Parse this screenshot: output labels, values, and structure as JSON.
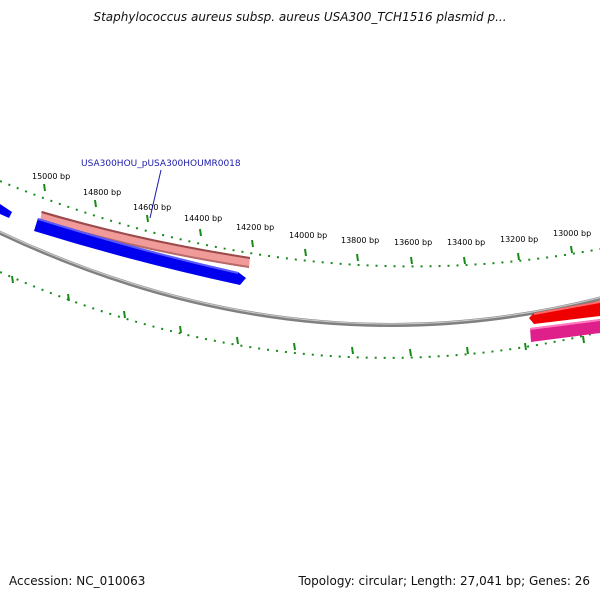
{
  "title": "Staphylococcus aureus subsp. aureus USA300_TCH1516 plasmid p...",
  "footer": {
    "accession": "Accession: NC_010063",
    "summary": "Topology: circular; Length: 27,041 bp; Genes: 26"
  },
  "gene_label": "USA300HOU_pUSA300HOUMR0018",
  "ticks": [
    "15000 bp",
    "14800 bp",
    "14600 bp",
    "14400 bp",
    "14200 bp",
    "14000 bp",
    "13800 bp",
    "13600 bp",
    "13400 bp",
    "13200 bp",
    "13000 bp"
  ],
  "colors": {
    "backbone": "#888888",
    "tick": "#1a8a1a",
    "gene_forward": "#e88080",
    "gene_reverse": "#0000ee",
    "gene_red": "#ee0000",
    "gene_magenta": "#e0208a",
    "label": "#1a1aaa"
  }
}
